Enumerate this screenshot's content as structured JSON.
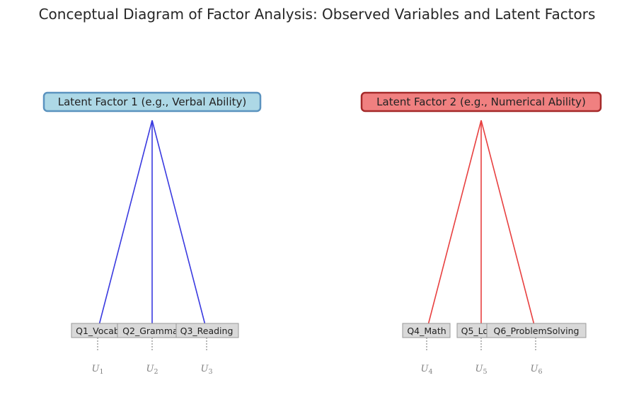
{
  "title": "Conceptual Diagram of Factor Analysis: Observed Variables and Latent Factors",
  "factors": [
    {
      "label": "Latent Factor 1 (e.g., Verbal Ability)",
      "fill": "#add8e6",
      "border": "#5b93bf",
      "line_color": "#3a3ae0"
    },
    {
      "label": "Latent Factor 2 (e.g., Numerical Ability)",
      "fill": "#f08080",
      "border": "#a52a2a",
      "line_color": "#e84040"
    }
  ],
  "variables": [
    {
      "label": "Q1_Vocab",
      "factor": 0,
      "error_main": "U",
      "error_sub": "1"
    },
    {
      "label": "Q2_Grammar",
      "factor": 0,
      "error_main": "U",
      "error_sub": "2"
    },
    {
      "label": "Q3_Reading",
      "factor": 0,
      "error_main": "U",
      "error_sub": "3"
    },
    {
      "label": "Q4_Math",
      "factor": 1,
      "error_main": "U",
      "error_sub": "4"
    },
    {
      "label": "Q5_Logic",
      "factor": 1,
      "error_main": "U",
      "error_sub": "5"
    },
    {
      "label": "Q6_ProblemSolving",
      "factor": 1,
      "error_main": "U",
      "error_sub": "6"
    }
  ],
  "colors": {
    "variable_box_fill": "#d9d9d9",
    "variable_box_border": "#999999",
    "error_color": "#8a8a8a"
  }
}
